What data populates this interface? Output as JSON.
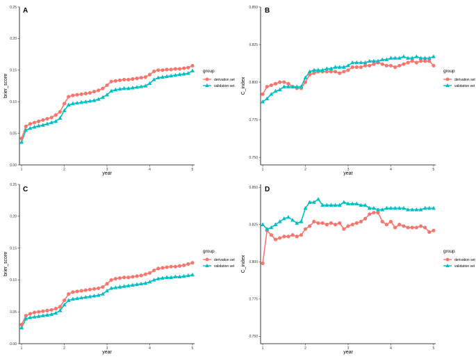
{
  "chart_data": [
    {
      "type": "line",
      "panel_label": "A",
      "xlabel": "year",
      "ylabel": "brier_score",
      "xlim": [
        0.95,
        5.05
      ],
      "ylim": [
        0,
        0.25
      ],
      "xticks": [
        1,
        2,
        3,
        4,
        5
      ],
      "yticks": [
        0.0,
        0.05,
        0.1,
        0.15,
        0.2,
        0.25
      ],
      "ytick_labels": [
        "0.00",
        "0.05",
        "0.10",
        "0.15",
        "0.20",
        "0.25"
      ],
      "legend_title": "group",
      "series": [
        {
          "name": "derivation set",
          "color": "#f8766d",
          "marker": "circle",
          "x": [
            1.0,
            1.1,
            1.2,
            1.3,
            1.4,
            1.5,
            1.6,
            1.7,
            1.8,
            1.9,
            2.0,
            2.1,
            2.2,
            2.3,
            2.4,
            2.5,
            2.6,
            2.7,
            2.8,
            2.9,
            3.0,
            3.1,
            3.2,
            3.3,
            3.4,
            3.5,
            3.6,
            3.7,
            3.8,
            3.9,
            4.0,
            4.1,
            4.2,
            4.3,
            4.4,
            4.5,
            4.6,
            4.7,
            4.8,
            4.9,
            5.0
          ],
          "values": [
            0.042,
            0.061,
            0.065,
            0.067,
            0.069,
            0.071,
            0.073,
            0.075,
            0.079,
            0.084,
            0.097,
            0.108,
            0.11,
            0.111,
            0.112,
            0.113,
            0.114,
            0.116,
            0.118,
            0.121,
            0.126,
            0.132,
            0.133,
            0.134,
            0.135,
            0.135,
            0.136,
            0.137,
            0.138,
            0.139,
            0.143,
            0.148,
            0.15,
            0.15,
            0.151,
            0.151,
            0.152,
            0.152,
            0.153,
            0.154,
            0.157
          ]
        },
        {
          "name": "validation set",
          "color": "#00bfc4",
          "marker": "triangle",
          "x": [
            1.0,
            1.1,
            1.2,
            1.3,
            1.4,
            1.5,
            1.6,
            1.7,
            1.8,
            1.9,
            2.0,
            2.1,
            2.2,
            2.3,
            2.4,
            2.5,
            2.6,
            2.7,
            2.8,
            2.9,
            3.0,
            3.1,
            3.2,
            3.3,
            3.4,
            3.5,
            3.6,
            3.7,
            3.8,
            3.9,
            4.0,
            4.1,
            4.2,
            4.3,
            4.4,
            4.5,
            4.6,
            4.7,
            4.8,
            4.9,
            5.0
          ],
          "values": [
            0.036,
            0.055,
            0.058,
            0.06,
            0.062,
            0.063,
            0.065,
            0.067,
            0.069,
            0.074,
            0.086,
            0.095,
            0.097,
            0.098,
            0.099,
            0.1,
            0.101,
            0.102,
            0.104,
            0.107,
            0.111,
            0.117,
            0.119,
            0.12,
            0.121,
            0.121,
            0.122,
            0.123,
            0.124,
            0.125,
            0.129,
            0.135,
            0.138,
            0.139,
            0.14,
            0.141,
            0.142,
            0.143,
            0.144,
            0.145,
            0.149
          ]
        }
      ]
    },
    {
      "type": "line",
      "panel_label": "B",
      "xlabel": "year",
      "ylabel": "C_index",
      "xlim": [
        0.95,
        5.05
      ],
      "ylim": [
        0.745,
        0.85
      ],
      "xticks": [
        1,
        2,
        3,
        4,
        5
      ],
      "yticks": [
        0.75,
        0.775,
        0.8,
        0.825,
        0.85
      ],
      "ytick_labels": [
        "0.750",
        "0.775",
        "0.800",
        "0.825",
        "0.850"
      ],
      "legend_title": "group",
      "series": [
        {
          "name": "derivation set",
          "color": "#f8766d",
          "marker": "circle",
          "x": [
            1.0,
            1.1,
            1.2,
            1.3,
            1.4,
            1.5,
            1.6,
            1.7,
            1.8,
            1.9,
            2.0,
            2.1,
            2.2,
            2.3,
            2.4,
            2.5,
            2.6,
            2.7,
            2.8,
            2.9,
            3.0,
            3.1,
            3.2,
            3.3,
            3.4,
            3.5,
            3.6,
            3.7,
            3.8,
            3.9,
            4.0,
            4.1,
            4.2,
            4.3,
            4.4,
            4.5,
            4.6,
            4.7,
            4.8,
            4.9,
            5.0
          ],
          "values": [
            0.792,
            0.797,
            0.798,
            0.799,
            0.8,
            0.8,
            0.799,
            0.797,
            0.796,
            0.796,
            0.8,
            0.805,
            0.806,
            0.807,
            0.807,
            0.807,
            0.807,
            0.807,
            0.806,
            0.807,
            0.808,
            0.81,
            0.81,
            0.81,
            0.811,
            0.811,
            0.812,
            0.813,
            0.812,
            0.811,
            0.811,
            0.81,
            0.811,
            0.812,
            0.813,
            0.814,
            0.813,
            0.814,
            0.814,
            0.814,
            0.811
          ]
        },
        {
          "name": "validation set",
          "color": "#00bfc4",
          "marker": "triangle",
          "x": [
            1.0,
            1.1,
            1.2,
            1.3,
            1.4,
            1.5,
            1.6,
            1.7,
            1.8,
            1.9,
            2.0,
            2.1,
            2.2,
            2.3,
            2.4,
            2.5,
            2.6,
            2.7,
            2.8,
            2.9,
            3.0,
            3.1,
            3.2,
            3.3,
            3.4,
            3.5,
            3.6,
            3.7,
            3.8,
            3.9,
            4.0,
            4.1,
            4.2,
            4.3,
            4.4,
            4.5,
            4.6,
            4.7,
            4.8,
            4.9,
            5.0
          ],
          "values": [
            0.787,
            0.789,
            0.792,
            0.794,
            0.795,
            0.797,
            0.797,
            0.797,
            0.797,
            0.797,
            0.803,
            0.807,
            0.808,
            0.808,
            0.808,
            0.809,
            0.809,
            0.81,
            0.81,
            0.81,
            0.811,
            0.813,
            0.813,
            0.813,
            0.813,
            0.814,
            0.814,
            0.814,
            0.815,
            0.815,
            0.816,
            0.816,
            0.816,
            0.817,
            0.816,
            0.816,
            0.817,
            0.816,
            0.816,
            0.816,
            0.817
          ]
        }
      ]
    },
    {
      "type": "line",
      "panel_label": "C",
      "xlabel": "year",
      "ylabel": "brier_score",
      "xlim": [
        0.95,
        5.05
      ],
      "ylim": [
        0,
        0.25
      ],
      "xticks": [
        1,
        2,
        3,
        4,
        5
      ],
      "yticks": [
        0.0,
        0.05,
        0.1,
        0.15,
        0.2,
        0.25
      ],
      "ytick_labels": [
        "0.00",
        "0.05",
        "0.10",
        "0.15",
        "0.20",
        "0.25"
      ],
      "legend_title": "group",
      "series": [
        {
          "name": "derivation set",
          "color": "#f8766d",
          "marker": "circle",
          "x": [
            1.0,
            1.1,
            1.2,
            1.3,
            1.4,
            1.5,
            1.6,
            1.7,
            1.8,
            1.9,
            2.0,
            2.1,
            2.2,
            2.3,
            2.4,
            2.5,
            2.6,
            2.7,
            2.8,
            2.9,
            3.0,
            3.1,
            3.2,
            3.3,
            3.4,
            3.5,
            3.6,
            3.7,
            3.8,
            3.9,
            4.0,
            4.1,
            4.2,
            4.3,
            4.4,
            4.5,
            4.6,
            4.7,
            4.8,
            4.9,
            5.0
          ],
          "values": [
            0.03,
            0.044,
            0.047,
            0.049,
            0.05,
            0.051,
            0.052,
            0.053,
            0.055,
            0.058,
            0.068,
            0.078,
            0.081,
            0.082,
            0.083,
            0.084,
            0.085,
            0.086,
            0.087,
            0.089,
            0.094,
            0.1,
            0.102,
            0.103,
            0.104,
            0.104,
            0.105,
            0.106,
            0.107,
            0.109,
            0.111,
            0.115,
            0.118,
            0.119,
            0.12,
            0.121,
            0.121,
            0.122,
            0.123,
            0.125,
            0.127
          ]
        },
        {
          "name": "validation set",
          "color": "#00bfc4",
          "marker": "triangle",
          "x": [
            1.0,
            1.1,
            1.2,
            1.3,
            1.4,
            1.5,
            1.6,
            1.7,
            1.8,
            1.9,
            2.0,
            2.1,
            2.2,
            2.3,
            2.4,
            2.5,
            2.6,
            2.7,
            2.8,
            2.9,
            3.0,
            3.1,
            3.2,
            3.3,
            3.4,
            3.5,
            3.6,
            3.7,
            3.8,
            3.9,
            4.0,
            4.1,
            4.2,
            4.3,
            4.4,
            4.5,
            4.6,
            4.7,
            4.8,
            4.9,
            5.0
          ],
          "values": [
            0.025,
            0.039,
            0.041,
            0.042,
            0.043,
            0.044,
            0.045,
            0.046,
            0.048,
            0.052,
            0.061,
            0.068,
            0.07,
            0.071,
            0.072,
            0.073,
            0.074,
            0.075,
            0.076,
            0.078,
            0.083,
            0.087,
            0.088,
            0.089,
            0.09,
            0.091,
            0.092,
            0.093,
            0.094,
            0.095,
            0.097,
            0.1,
            0.102,
            0.103,
            0.104,
            0.104,
            0.105,
            0.105,
            0.106,
            0.107,
            0.108
          ]
        }
      ]
    },
    {
      "type": "line",
      "panel_label": "D",
      "xlabel": "year",
      "ylabel": "C_index",
      "xlim": [
        0.95,
        5.05
      ],
      "ylim": [
        0.745,
        0.852
      ],
      "xticks": [
        1,
        2,
        3,
        4,
        5
      ],
      "yticks": [
        0.75,
        0.775,
        0.8,
        0.825,
        0.85
      ],
      "ytick_labels": [
        "0.750",
        "0.775",
        "0.800",
        "0.825",
        "0.850"
      ],
      "legend_title": "group",
      "series": [
        {
          "name": "derivation set",
          "color": "#f8766d",
          "marker": "circle",
          "x": [
            1.0,
            1.1,
            1.2,
            1.3,
            1.4,
            1.5,
            1.6,
            1.7,
            1.8,
            1.9,
            2.0,
            2.1,
            2.2,
            2.3,
            2.4,
            2.5,
            2.6,
            2.7,
            2.8,
            2.9,
            3.0,
            3.1,
            3.2,
            3.3,
            3.4,
            3.5,
            3.6,
            3.7,
            3.8,
            3.9,
            4.0,
            4.1,
            4.2,
            4.3,
            4.4,
            4.5,
            4.6,
            4.7,
            4.8,
            4.9,
            5.0
          ],
          "values": [
            0.799,
            0.821,
            0.818,
            0.815,
            0.816,
            0.817,
            0.817,
            0.818,
            0.817,
            0.818,
            0.822,
            0.824,
            0.827,
            0.826,
            0.826,
            0.825,
            0.826,
            0.825,
            0.826,
            0.822,
            0.824,
            0.825,
            0.826,
            0.827,
            0.829,
            0.832,
            0.833,
            0.833,
            0.827,
            0.825,
            0.827,
            0.823,
            0.825,
            0.824,
            0.823,
            0.823,
            0.823,
            0.824,
            0.823,
            0.82,
            0.821
          ]
        },
        {
          "name": "validation set",
          "color": "#00bfc4",
          "marker": "triangle",
          "x": [
            1.0,
            1.1,
            1.2,
            1.3,
            1.4,
            1.5,
            1.6,
            1.7,
            1.8,
            1.9,
            2.0,
            2.1,
            2.2,
            2.3,
            2.4,
            2.5,
            2.6,
            2.7,
            2.8,
            2.9,
            3.0,
            3.1,
            3.2,
            3.3,
            3.4,
            3.5,
            3.6,
            3.7,
            3.8,
            3.9,
            4.0,
            4.1,
            4.2,
            4.3,
            4.4,
            4.5,
            4.6,
            4.7,
            4.8,
            4.9,
            5.0
          ],
          "values": [
            0.825,
            0.822,
            0.823,
            0.825,
            0.827,
            0.829,
            0.83,
            0.828,
            0.826,
            0.827,
            0.836,
            0.84,
            0.84,
            0.842,
            0.838,
            0.838,
            0.838,
            0.838,
            0.838,
            0.84,
            0.839,
            0.839,
            0.839,
            0.838,
            0.838,
            0.836,
            0.836,
            0.835,
            0.835,
            0.836,
            0.836,
            0.836,
            0.836,
            0.836,
            0.835,
            0.835,
            0.835,
            0.835,
            0.836,
            0.836,
            0.836
          ]
        }
      ]
    }
  ]
}
